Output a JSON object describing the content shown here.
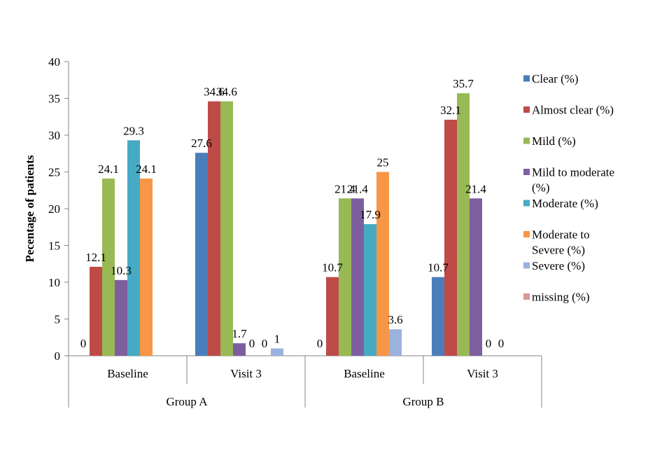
{
  "chart_data": {
    "type": "bar",
    "title": "",
    "xlabel": "",
    "ylabel": "Pecentage of patients",
    "ylim": [
      0,
      40
    ],
    "yticks": [
      0,
      5,
      10,
      15,
      20,
      25,
      30,
      35,
      40
    ],
    "grid": false,
    "legend_position": "right",
    "groups": [
      "Group A",
      "Group B"
    ],
    "categories": [
      {
        "label": "Baseline",
        "group": 0
      },
      {
        "label": "Visit 3",
        "group": 0
      },
      {
        "label": "Baseline",
        "group": 1
      },
      {
        "label": "Visit 3",
        "group": 1
      }
    ],
    "series": [
      {
        "name": "Clear (%)",
        "color": "#4a7ebb",
        "values": [
          0,
          27.6,
          0,
          10.7
        ],
        "labels": [
          "0",
          "27.6",
          "0",
          "10.7"
        ]
      },
      {
        "name": "Almost clear (%)",
        "color": "#be4b48",
        "values": [
          12.1,
          34.6,
          10.7,
          32.1
        ],
        "labels": [
          "12.1",
          "34.6",
          "10.7",
          "32.1"
        ]
      },
      {
        "name": "Mild (%)",
        "color": "#98b954",
        "values": [
          24.1,
          34.6,
          21.4,
          35.7
        ],
        "labels": [
          "24.1",
          "34.6",
          "21.4",
          "35.7"
        ]
      },
      {
        "name": "Mild to moderate (%)",
        "color": "#7d5fa0",
        "values": [
          10.3,
          1.7,
          21.4,
          21.4
        ],
        "labels": [
          "10.3",
          "1.7",
          "21.4",
          "21.4"
        ]
      },
      {
        "name": "Moderate (%)",
        "color": "#46aac5",
        "values": [
          29.3,
          0,
          17.9,
          0
        ],
        "labels": [
          "29.3",
          "0",
          "17.9",
          "0"
        ]
      },
      {
        "name": "Moderate to Severe (%)",
        "color": "#f79646",
        "values": [
          24.1,
          0,
          25,
          0
        ],
        "labels": [
          "24.1",
          "0",
          "25",
          "0"
        ]
      },
      {
        "name": "Severe (%)",
        "color": "#9bb1de",
        "values": [
          null,
          1,
          3.6,
          null
        ],
        "labels": [
          null,
          "1",
          "3.6",
          null
        ]
      },
      {
        "name": "missing (%)",
        "color": "#d99795",
        "values": [
          null,
          null,
          null,
          null
        ],
        "labels": [
          null,
          null,
          null,
          null
        ]
      }
    ]
  }
}
